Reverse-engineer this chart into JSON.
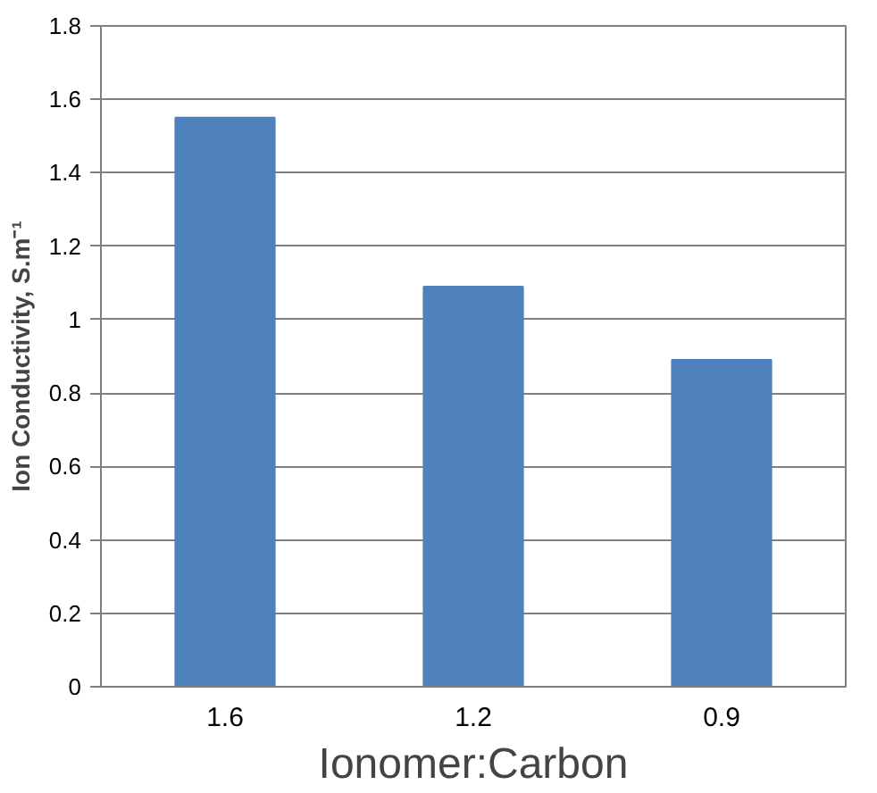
{
  "chart_data": {
    "type": "bar",
    "xlabel": "Ionomer:Carbon",
    "ylabel": "Ion Conductivity, S.m⁻¹",
    "categories": [
      "1.6",
      "1.2",
      "0.9"
    ],
    "values": [
      1.55,
      1.09,
      0.89
    ],
    "color": "#4f81bd",
    "ylim": [
      0,
      1.8
    ],
    "yticks": [
      0,
      0.2,
      0.4,
      0.6,
      0.8,
      1,
      1.2,
      1.4,
      1.6,
      1.8
    ],
    "grid": "y"
  }
}
